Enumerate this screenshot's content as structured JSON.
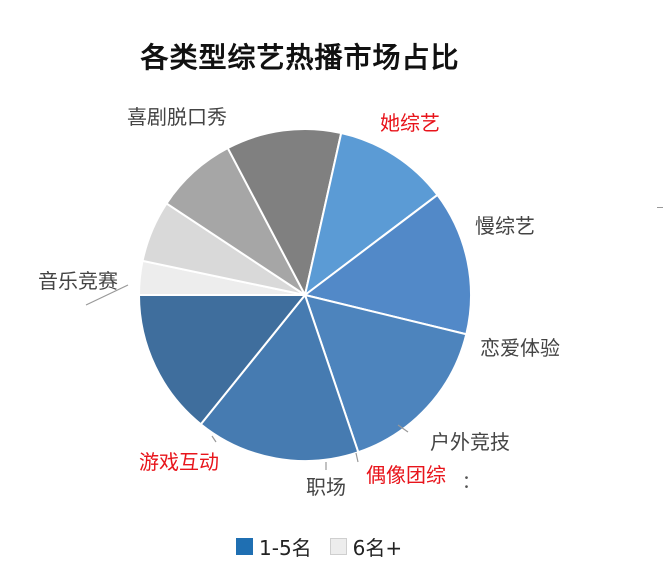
{
  "chart_data": {
    "type": "pie",
    "title": "各类型综艺热播市场占比",
    "start_angle_deg": 180,
    "direction": "counterclockwise",
    "slices": [
      {
        "label": "职场",
        "value": 3.3,
        "color": "#ededed",
        "label_color": "#444444",
        "group": "6名+"
      },
      {
        "label": "偶像团综",
        "value": 6.0,
        "color": "#d9d9d9",
        "label_color": "#e8141b",
        "group": "6名+"
      },
      {
        "label": "户外竞技",
        "value": 8.0,
        "color": "#a6a6a6",
        "label_color": "#444444",
        "group": "6名+"
      },
      {
        "label": "恋爱体验",
        "value": 11.2,
        "color": "#808080",
        "label_color": "#444444",
        "group": "6名+"
      },
      {
        "label": "慢综艺",
        "value": 11.2,
        "color": "#5b9bd5",
        "label_color": "#444444",
        "group": "1-5名"
      },
      {
        "label": "她综艺",
        "value": 14.1,
        "color": "#5289c8",
        "label_color": "#e8141b",
        "group": "1-5名"
      },
      {
        "label": "喜剧脱口秀",
        "value": 16.0,
        "color": "#4d84bd",
        "label_color": "#444444",
        "group": "1-5名"
      },
      {
        "label": "音乐竞赛",
        "value": 16.0,
        "color": "#467bb1",
        "label_color": "#444444",
        "group": "1-5名"
      },
      {
        "label": "游戏互动",
        "value": 14.2,
        "color": "#3f6e9d",
        "label_color": "#e8141b",
        "group": "1-5名"
      }
    ],
    "legend": [
      {
        "label": "1-5名",
        "color": "#1f6fb2"
      },
      {
        "label": "6名+",
        "color": "#ededed"
      }
    ],
    "legend_position": "bottom"
  },
  "edge_mark": "："
}
